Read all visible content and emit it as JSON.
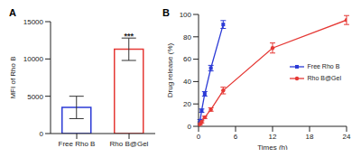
{
  "chart_data": [
    {
      "type": "bar",
      "title": "A",
      "categories": [
        "Free Rho B",
        "Rho B@Gel"
      ],
      "values": [
        3500,
        11300
      ],
      "errors": [
        1500,
        1500
      ],
      "colors": [
        "#2c3bd6",
        "#e53935"
      ],
      "y_label": "MFI of Rho B",
      "ylim": [
        0,
        15000
      ],
      "yticks": [
        0,
        5000,
        10000,
        15000
      ],
      "annotations": [
        {
          "category": "Rho B@Gel",
          "text": "***"
        }
      ]
    },
    {
      "type": "line",
      "title": "B",
      "x_label": "Times (h)",
      "y_label": "Drug release (%)",
      "xlim": [
        0,
        24
      ],
      "xticks": [
        0,
        6,
        12,
        18,
        24
      ],
      "ylim": [
        0,
        100
      ],
      "yticks": [
        0,
        20,
        40,
        60,
        80,
        100
      ],
      "legend": "right",
      "series": [
        {
          "name": "Free Rho B",
          "color": "#2c3bd6",
          "marker": "square",
          "x": [
            0,
            0.25,
            0.5,
            1,
            2,
            4
          ],
          "values": [
            0,
            5,
            14,
            29,
            52,
            91
          ],
          "errors": [
            0,
            1,
            1.5,
            2,
            2.5,
            3.5
          ]
        },
        {
          "name": "Rho B@Gel",
          "color": "#e53935",
          "marker": "circle",
          "x": [
            0,
            0.25,
            0.5,
            1,
            2,
            4,
            12,
            24
          ],
          "values": [
            0,
            2,
            4,
            8,
            15,
            32,
            70,
            95
          ],
          "errors": [
            0,
            0.5,
            1,
            1,
            1.5,
            3,
            4.5,
            4
          ]
        }
      ]
    }
  ]
}
